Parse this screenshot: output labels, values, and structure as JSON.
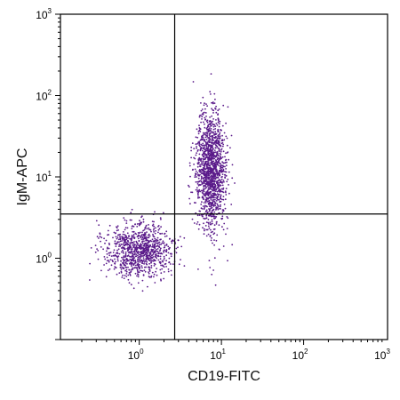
{
  "chart_data": {
    "type": "scatter",
    "xlabel": "CD19-FITC",
    "ylabel": "IgM-APC",
    "x_scale": "log",
    "y_scale": "log",
    "xlim": [
      0.11,
      1050
    ],
    "ylim": [
      0.1,
      1000
    ],
    "x_ticks": [
      {
        "value": 1,
        "base": "10",
        "exp": "0"
      },
      {
        "value": 10,
        "base": "10",
        "exp": "1"
      },
      {
        "value": 100,
        "base": "10",
        "exp": "2"
      },
      {
        "value": 1000,
        "base": "10",
        "exp": "3"
      }
    ],
    "y_ticks": [
      {
        "value": 1,
        "base": "10",
        "exp": "0"
      },
      {
        "value": 10,
        "base": "10",
        "exp": "1"
      },
      {
        "value": 100,
        "base": "10",
        "exp": "2"
      },
      {
        "value": 1000,
        "base": "10",
        "exp": "3"
      }
    ],
    "gate_lines": {
      "x": 2.7,
      "y": 3.5
    },
    "point_color": "#5a1a8a",
    "populations": [
      {
        "cx": 1.0,
        "cy": 1.25,
        "sx_dec": 0.2,
        "sy_dec": 0.17,
        "n": 950
      },
      {
        "cx": 7.5,
        "cy": 12,
        "sx_dec": 0.09,
        "sy_dec": 0.36,
        "n": 1450
      }
    ],
    "grid": false,
    "legend": "none"
  }
}
